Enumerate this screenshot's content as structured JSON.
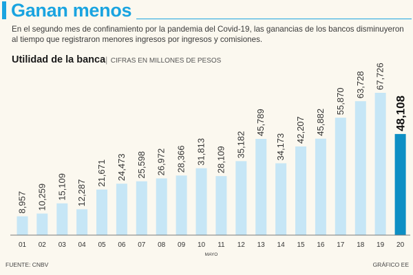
{
  "header": {
    "title": "Ganan menos",
    "intro": "En el segundo mes de confinamiento por la pandemia del Covid-19, las ganancias de los bancos disminuyeron al tiempo que registraron menores ingresos por ingresos y comisiones."
  },
  "footer": {
    "source": "FUENTE: CNBV",
    "credit": "GRÁFICO EE"
  },
  "colors": {
    "accent": "#1aa4e0",
    "bar": "#c6e6f6",
    "highlight": "#0e8fc4"
  },
  "chart_data": {
    "type": "bar",
    "title": "Utilidad de la banca",
    "subtitle": "CIFRAS EN MILLONES DE PESOS",
    "xlabel": "MAYO",
    "ylabel": "",
    "ylim": [
      0,
      70000
    ],
    "categories": [
      "01",
      "02",
      "03",
      "04",
      "05",
      "06",
      "07",
      "08",
      "09",
      "10",
      "11",
      "12",
      "13",
      "14",
      "15",
      "16",
      "17",
      "18",
      "19",
      "20"
    ],
    "values": [
      8957,
      10259,
      15109,
      12287,
      21671,
      24473,
      25598,
      26972,
      28366,
      31813,
      28109,
      35182,
      45789,
      34173,
      42207,
      45882,
      55870,
      63728,
      67726,
      48108
    ],
    "labels": [
      "8,957",
      "10,259",
      "15,109",
      "12,287",
      "21,671",
      "24,473",
      "25,598",
      "26,972",
      "28,366",
      "31,813",
      "28,109",
      "35,182",
      "45,789",
      "34,173",
      "42,207",
      "45,882",
      "55,870",
      "63,728",
      "67,726",
      "48,108"
    ],
    "highlight_index": 19
  }
}
